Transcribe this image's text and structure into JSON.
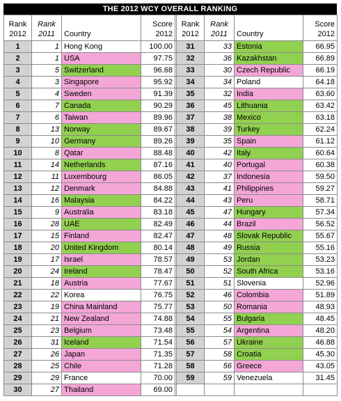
{
  "title": "THE 2012 WCY OVERALL RANKING",
  "headers": {
    "rank2012_line1": "Rank",
    "rank2012_line2": "2012",
    "rank2011_line1": "Rank",
    "rank2011_line2": "2011",
    "country": "Country",
    "score_line1": "Score",
    "score_line2": "2012"
  },
  "colors": {
    "green": "#92d050",
    "pink": "#f4a6d7",
    "white": "#ffffff",
    "rank_bg": "#d3d3d3"
  },
  "rows": [
    {
      "rank2012": "1",
      "rank2011": "1",
      "country": "Hong Kong",
      "score": "100.00",
      "color": "white"
    },
    {
      "rank2012": "2",
      "rank2011": "1",
      "country": "USA",
      "score": "97.75",
      "color": "pink"
    },
    {
      "rank2012": "3",
      "rank2011": "5",
      "country": "Switzerland",
      "score": "96.68",
      "color": "green"
    },
    {
      "rank2012": "4",
      "rank2011": "3",
      "country": "Singapore",
      "score": "95.92",
      "color": "pink"
    },
    {
      "rank2012": "5",
      "rank2011": "4",
      "country": "Sweden",
      "score": "91.39",
      "color": "pink"
    },
    {
      "rank2012": "6",
      "rank2011": "7",
      "country": "Canada",
      "score": "90.29",
      "color": "green"
    },
    {
      "rank2012": "7",
      "rank2011": "6",
      "country": "Taiwan",
      "score": "89.96",
      "color": "pink"
    },
    {
      "rank2012": "8",
      "rank2011": "13",
      "country": "Norway",
      "score": "89.67",
      "color": "green"
    },
    {
      "rank2012": "9",
      "rank2011": "10",
      "country": "Germany",
      "score": "89.26",
      "color": "green"
    },
    {
      "rank2012": "10",
      "rank2011": "8",
      "country": "Qatar",
      "score": "88.48",
      "color": "pink"
    },
    {
      "rank2012": "11",
      "rank2011": "14",
      "country": "Netherlands",
      "score": "87.16",
      "color": "green"
    },
    {
      "rank2012": "12",
      "rank2011": "11",
      "country": "Luxembourg",
      "score": "86.05",
      "color": "pink"
    },
    {
      "rank2012": "13",
      "rank2011": "12",
      "country": "Denmark",
      "score": "84.88",
      "color": "pink"
    },
    {
      "rank2012": "14",
      "rank2011": "16",
      "country": "Malaysia",
      "score": "84.22",
      "color": "green"
    },
    {
      "rank2012": "15",
      "rank2011": "9",
      "country": "Australia",
      "score": "83.18",
      "color": "pink"
    },
    {
      "rank2012": "16",
      "rank2011": "28",
      "country": "UAE",
      "score": "82.49",
      "color": "green"
    },
    {
      "rank2012": "17",
      "rank2011": "15",
      "country": "Finland",
      "score": "82.47",
      "color": "pink"
    },
    {
      "rank2012": "18",
      "rank2011": "20",
      "country": "United Kingdom",
      "score": "80.14",
      "color": "green"
    },
    {
      "rank2012": "19",
      "rank2011": "17",
      "country": "Israel",
      "score": "78.57",
      "color": "pink"
    },
    {
      "rank2012": "20",
      "rank2011": "24",
      "country": "Ireland",
      "score": "78.47",
      "color": "green"
    },
    {
      "rank2012": "21",
      "rank2011": "18",
      "country": "Austria",
      "score": "77.67",
      "color": "pink"
    },
    {
      "rank2012": "22",
      "rank2011": "22",
      "country": "Korea",
      "score": "76.75",
      "color": "white"
    },
    {
      "rank2012": "23",
      "rank2011": "19",
      "country": "China Mainland",
      "score": "75.77",
      "color": "pink"
    },
    {
      "rank2012": "24",
      "rank2011": "21",
      "country": "New Zealand",
      "score": "74.88",
      "color": "pink"
    },
    {
      "rank2012": "25",
      "rank2011": "23",
      "country": "Belgium",
      "score": "73.48",
      "color": "pink"
    },
    {
      "rank2012": "26",
      "rank2011": "31",
      "country": "Iceland",
      "score": "71.54",
      "color": "green"
    },
    {
      "rank2012": "27",
      "rank2011": "26",
      "country": "Japan",
      "score": "71.35",
      "color": "pink"
    },
    {
      "rank2012": "28",
      "rank2011": "25",
      "country": "Chile",
      "score": "71.28",
      "color": "pink"
    },
    {
      "rank2012": "29",
      "rank2011": "29",
      "country": "France",
      "score": "70.00",
      "color": "white"
    },
    {
      "rank2012": "30",
      "rank2011": "27",
      "country": "Thailand",
      "score": "69.00",
      "color": "pink"
    },
    {
      "rank2012": "31",
      "rank2011": "33",
      "country": "Estonia",
      "score": "66.95",
      "color": "green"
    },
    {
      "rank2012": "32",
      "rank2011": "36",
      "country": "Kazakhstan",
      "score": "66.89",
      "color": "green"
    },
    {
      "rank2012": "33",
      "rank2011": "30",
      "country": "Czech Republic",
      "score": "66.19",
      "color": "pink"
    },
    {
      "rank2012": "34",
      "rank2011": "34",
      "country": "Poland",
      "score": "64.18",
      "color": "white"
    },
    {
      "rank2012": "35",
      "rank2011": "32",
      "country": "India",
      "score": "63.60",
      "color": "pink"
    },
    {
      "rank2012": "36",
      "rank2011": "45",
      "country": "Lithuania",
      "score": "63.42",
      "color": "green"
    },
    {
      "rank2012": "37",
      "rank2011": "38",
      "country": "Mexico",
      "score": "63.18",
      "color": "green"
    },
    {
      "rank2012": "38",
      "rank2011": "39",
      "country": "Turkey",
      "score": "62.24",
      "color": "green"
    },
    {
      "rank2012": "39",
      "rank2011": "35",
      "country": "Spain",
      "score": "61.12",
      "color": "pink"
    },
    {
      "rank2012": "40",
      "rank2011": "42",
      "country": "Italy",
      "score": "60.64",
      "color": "green"
    },
    {
      "rank2012": "41",
      "rank2011": "40",
      "country": "Portugal",
      "score": "60.38",
      "color": "pink"
    },
    {
      "rank2012": "42",
      "rank2011": "37",
      "country": "Indonesia",
      "score": "59.50",
      "color": "pink"
    },
    {
      "rank2012": "43",
      "rank2011": "41",
      "country": "Philippines",
      "score": "59.27",
      "color": "pink"
    },
    {
      "rank2012": "44",
      "rank2011": "43",
      "country": "Peru",
      "score": "58.71",
      "color": "pink"
    },
    {
      "rank2012": "45",
      "rank2011": "47",
      "country": "Hungary",
      "score": "57.34",
      "color": "green"
    },
    {
      "rank2012": "46",
      "rank2011": "44",
      "country": "Brazil",
      "score": "56.52",
      "color": "pink"
    },
    {
      "rank2012": "47",
      "rank2011": "48",
      "country": "Slovak Republic",
      "score": "55.67",
      "color": "green"
    },
    {
      "rank2012": "48",
      "rank2011": "49",
      "country": "Russia",
      "score": "55.16",
      "color": "green"
    },
    {
      "rank2012": "49",
      "rank2011": "53",
      "country": "Jordan",
      "score": "53.23",
      "color": "green"
    },
    {
      "rank2012": "50",
      "rank2011": "52",
      "country": "South Africa",
      "score": "53.16",
      "color": "green"
    },
    {
      "rank2012": "51",
      "rank2011": "51",
      "country": "Slovenia",
      "score": "52.96",
      "color": "white"
    },
    {
      "rank2012": "52",
      "rank2011": "46",
      "country": "Colombia",
      "score": "51.89",
      "color": "pink"
    },
    {
      "rank2012": "53",
      "rank2011": "50",
      "country": "Romania",
      "score": "48.93",
      "color": "pink"
    },
    {
      "rank2012": "54",
      "rank2011": "55",
      "country": "Bulgaria",
      "score": "48.45",
      "color": "green"
    },
    {
      "rank2012": "55",
      "rank2011": "54",
      "country": "Argentina",
      "score": "48.20",
      "color": "pink"
    },
    {
      "rank2012": "56",
      "rank2011": "57",
      "country": "Ukraine",
      "score": "46.88",
      "color": "green"
    },
    {
      "rank2012": "57",
      "rank2011": "58",
      "country": "Croatia",
      "score": "45.30",
      "color": "green"
    },
    {
      "rank2012": "58",
      "rank2011": "56",
      "country": "Greece",
      "score": "43.05",
      "color": "pink"
    },
    {
      "rank2012": "59",
      "rank2011": "59",
      "country": "Venezuela",
      "score": "31.45",
      "color": "white"
    }
  ]
}
